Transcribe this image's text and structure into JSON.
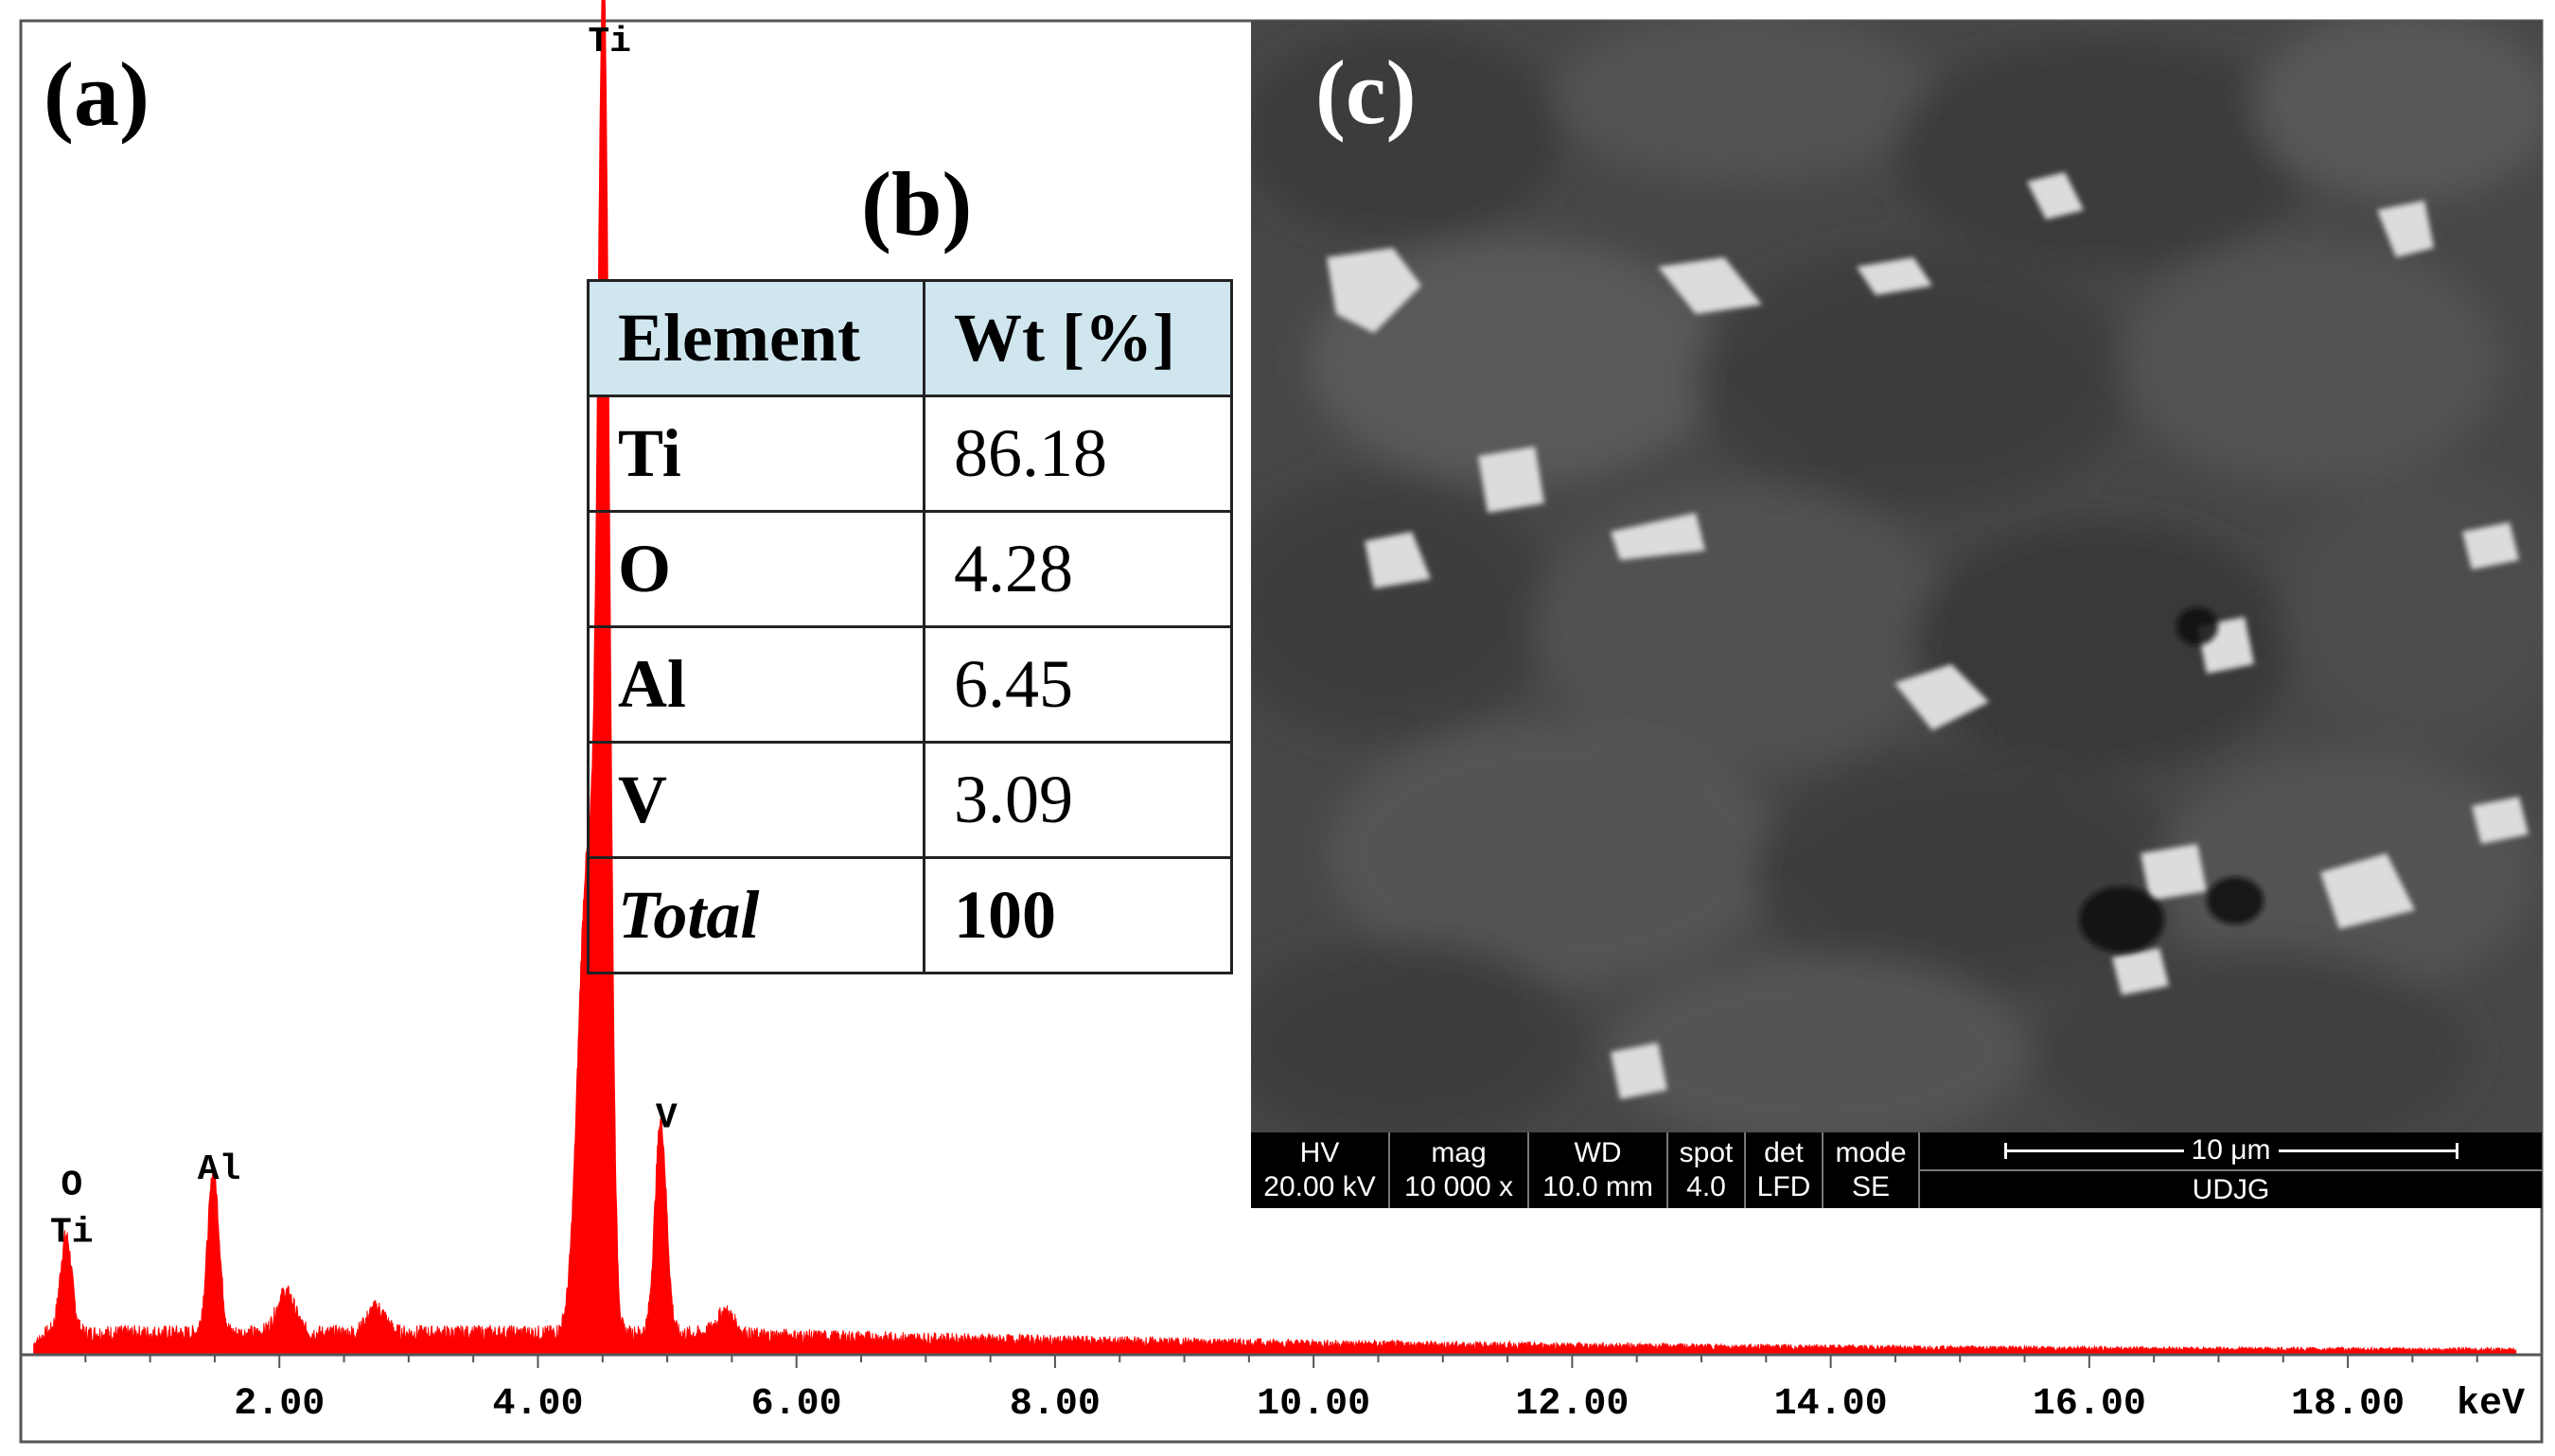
{
  "panel_labels": {
    "a": "(a)",
    "b": "(b)",
    "c": "(c)"
  },
  "chart_data": {
    "type": "line",
    "title": "",
    "xlabel": "keV",
    "ylabel": "",
    "xlim": [
      0,
      19.5
    ],
    "ylim": [
      0,
      100
    ],
    "x_ticks": [
      "2.00",
      "4.00",
      "6.00",
      "8.00",
      "10.00",
      "12.00",
      "14.00",
      "16.00",
      "18.00"
    ],
    "color": "#ff0000",
    "peaks": [
      {
        "label": "O\nTi",
        "label_lines": [
          "O",
          "Ti"
        ],
        "x": 0.35,
        "y": 7.6
      },
      {
        "label": "Al",
        "label_lines": [
          "Al"
        ],
        "x": 1.49,
        "y": 12.5
      },
      {
        "label": "Ti",
        "label_lines": [
          "Ti"
        ],
        "x": 4.51,
        "y": 100
      },
      {
        "label": "V",
        "label_lines": [
          "V"
        ],
        "x": 4.95,
        "y": 16.5
      }
    ],
    "minor_peaks": [
      {
        "x": 2.05,
        "y": 3.2
      },
      {
        "x": 2.75,
        "y": 2.0
      },
      {
        "x": 4.38,
        "y": 36
      },
      {
        "x": 5.45,
        "y": 1.8
      }
    ],
    "background_level": 1.4
  },
  "table": {
    "headers": [
      "Element",
      "Wt [%]"
    ],
    "rows": [
      [
        "Ti",
        "86.18"
      ],
      [
        "O",
        "4.28"
      ],
      [
        "Al",
        "6.45"
      ],
      [
        "V",
        "3.09"
      ],
      [
        "Total",
        "100"
      ]
    ]
  },
  "sem": {
    "databar": {
      "hv_label": "HV",
      "hv_value": "20.00 kV",
      "mag_label": "mag",
      "mag_value": "10 000 x",
      "wd_label": "WD",
      "wd_value": "10.0 mm",
      "spot_label": "spot",
      "spot_value": "4.0",
      "det_label": "det",
      "det_value": "LFD",
      "mode_label": "mode",
      "mode_value": "SE",
      "scale_label": "10 μm",
      "lab_label": "UDJG"
    }
  }
}
